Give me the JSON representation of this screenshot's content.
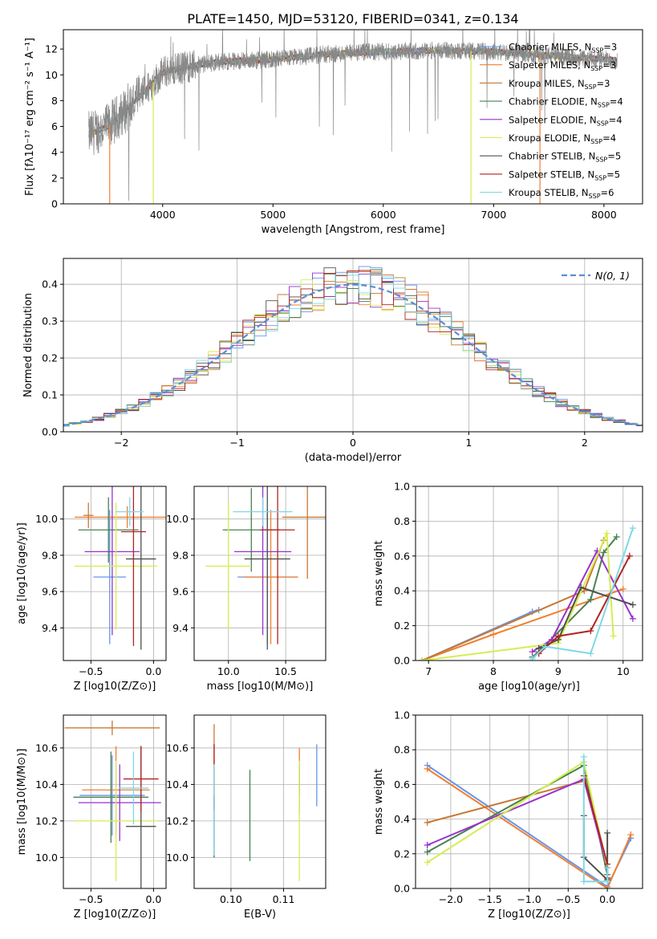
{
  "figure": {
    "title": "PLATE=1450, MJD=53120, FIBERID=0341, z=0.134",
    "series_colors": [
      "#6495ed",
      "#f08030",
      "#c87832",
      "#4a8050",
      "#9932cc",
      "#d4ee50",
      "#505050",
      "#b22222",
      "#7fd8e6"
    ]
  },
  "chart_data": [
    {
      "id": "spectrum",
      "type": "line",
      "xlabel": "wavelength [Angstrom, rest frame]",
      "ylabel": "Flux [fλ10⁻¹⁷ erg cm⁻² s⁻¹ A⁻¹]",
      "xlim": [
        3100,
        8350
      ],
      "ylim": [
        0,
        13.5
      ],
      "xticks": [
        4000,
        5000,
        6000,
        7000,
        8000
      ],
      "yticks": [
        0,
        2,
        4,
        6,
        8,
        10,
        12
      ],
      "grid": false,
      "legend_position": "right",
      "data_range_x": [
        3330,
        8120
      ],
      "continuum": {
        "x": [
          3330,
          3500,
          3700,
          3900,
          4000,
          4200,
          4500,
          5000,
          5500,
          6000,
          6500,
          7000,
          7500,
          8000,
          8120
        ],
        "y": [
          5.4,
          6.0,
          7.5,
          9.3,
          10.2,
          10.6,
          11.0,
          11.2,
          11.6,
          11.8,
          11.9,
          11.8,
          11.5,
          11.2,
          11.1
        ]
      },
      "legend": [
        "Chabrier MILES, N_SSP=3",
        "Salpeter MILES, N_SSP=3",
        "Kroupa MILES, N_SSP=3",
        "Chabrier ELODIE, N_SSP=4",
        "Salpeter ELODIE, N_SSP=4",
        "Kroupa ELODIE, N_SSP=4",
        "Chabrier STELIB, N_SSP=5",
        "Salpeter STELIB, N_SSP=5",
        "Kroupa STELIB, N_SSP=6"
      ]
    },
    {
      "id": "residuals",
      "type": "step-histogram",
      "xlabel": "(data-model)/error",
      "ylabel": "Normed distribution",
      "xlim": [
        -2.5,
        2.5
      ],
      "ylim": [
        0,
        0.47
      ],
      "xticks": [
        -2,
        -1,
        0,
        1,
        2
      ],
      "yticks": [
        0.0,
        0.1,
        0.2,
        0.3,
        0.4
      ],
      "grid": true,
      "legend": "N(0, 1)",
      "legend_position": "top-right",
      "bin_width": 0.1,
      "reference_curve": "gaussian mean 0 sigma 1"
    },
    {
      "id": "z_age",
      "type": "errorbar",
      "xlabel": "Z [log10(Z/Z⊙)]",
      "ylabel": "age  [log10(age/yr)]",
      "xlim": [
        -0.72,
        0.1
      ],
      "ylim": [
        9.22,
        10.18
      ],
      "xticks": [
        -0.5,
        0.0
      ],
      "yticks": [
        9.4,
        9.6,
        9.8,
        10.0
      ],
      "grid": true,
      "points": [
        {
          "x": -0.35,
          "y": 9.68,
          "xerr": 0.13,
          "yerr": 0.37
        },
        {
          "x": -0.21,
          "y": 10.01,
          "xerr": 0.42,
          "yerr": 0.06
        },
        {
          "x": -0.52,
          "y": 10.02,
          "xerr": 0.04,
          "yerr": 0.07
        },
        {
          "x": -0.36,
          "y": 9.94,
          "xerr": 0.24,
          "yerr": 0.18
        },
        {
          "x": -0.33,
          "y": 9.82,
          "xerr": 0.22,
          "yerr": 0.46
        },
        {
          "x": -0.3,
          "y": 9.74,
          "xerr": 0.33,
          "yerr": 0.35
        },
        {
          "x": -0.1,
          "y": 9.78,
          "xerr": 0.12,
          "yerr": 0.5
        },
        {
          "x": -0.16,
          "y": 9.93,
          "xerr": 0.1,
          "yerr": 0.63
        },
        {
          "x": -0.19,
          "y": 10.04,
          "xerr": 0.11,
          "yerr": 0.08
        }
      ]
    },
    {
      "id": "mass_age",
      "type": "errorbar",
      "xlabel": "mass [log10(M/M⊙)]",
      "ylabel": "",
      "xlim": [
        9.7,
        10.85
      ],
      "ylim": [
        9.22,
        10.18
      ],
      "xticks": [
        10.0,
        10.5
      ],
      "yticks": [
        9.4,
        9.6,
        9.8,
        10.0
      ],
      "grid": true,
      "points": [
        {
          "x": 10.34,
          "y": 9.68,
          "xerr": 0.26,
          "yerr": 0.37
        },
        {
          "x": 10.37,
          "y": 9.68,
          "xerr": 0.24,
          "yerr": 0.37
        },
        {
          "x": 10.69,
          "y": 10.01,
          "xerr": 0.22,
          "yerr": 0.34
        },
        {
          "x": 10.2,
          "y": 9.94,
          "xerr": 0.25,
          "yerr": 0.23
        },
        {
          "x": 10.3,
          "y": 9.82,
          "xerr": 0.25,
          "yerr": 0.46
        },
        {
          "x": 10.0,
          "y": 9.74,
          "xerr": 0.2,
          "yerr": 0.35
        },
        {
          "x": 10.34,
          "y": 9.78,
          "xerr": 0.2,
          "yerr": 0.5
        },
        {
          "x": 10.43,
          "y": 9.94,
          "xerr": 0.15,
          "yerr": 0.63
        },
        {
          "x": 10.3,
          "y": 10.04,
          "xerr": 0.26,
          "yerr": 0.08
        }
      ]
    },
    {
      "id": "age_weight",
      "type": "line",
      "xlabel": "age  [log10(age/yr)]",
      "ylabel": "mass weight",
      "xlim": [
        6.8,
        10.3
      ],
      "ylim": [
        0,
        1.0
      ],
      "xticks": [
        7,
        8,
        9,
        10
      ],
      "yticks": [
        0.0,
        0.2,
        0.4,
        0.6,
        0.8,
        1.0
      ],
      "grid": true,
      "series": [
        {
          "x": [
            6.9,
            8.6,
            8.7
          ],
          "y": [
            0.0,
            0.28,
            0.29
          ]
        },
        {
          "x": [
            6.9,
            8.0,
            10.0
          ],
          "y": [
            0.0,
            0.15,
            0.41
          ]
        },
        {
          "x": [
            6.9,
            9.4,
            9.7
          ],
          "y": [
            0.0,
            0.4,
            0.69
          ]
        },
        {
          "x": [
            8.6,
            8.7,
            9.5,
            9.7,
            9.9
          ],
          "y": [
            0.02,
            0.05,
            0.35,
            0.62,
            0.71
          ]
        },
        {
          "x": [
            8.6,
            8.9,
            9.6,
            10.15
          ],
          "y": [
            0.05,
            0.12,
            0.63,
            0.24
          ]
        },
        {
          "x": [
            6.9,
            9.0,
            9.75,
            9.85
          ],
          "y": [
            0.0,
            0.1,
            0.73,
            0.14
          ]
        },
        {
          "x": [
            8.7,
            9.0,
            9.35,
            10.15
          ],
          "y": [
            0.07,
            0.12,
            0.42,
            0.32
          ]
        },
        {
          "x": [
            8.7,
            9.0,
            9.5,
            10.1
          ],
          "y": [
            0.04,
            0.14,
            0.17,
            0.6
          ]
        },
        {
          "x": [
            8.6,
            8.8,
            9.5,
            10.15
          ],
          "y": [
            0.01,
            0.08,
            0.04,
            0.76
          ]
        }
      ]
    },
    {
      "id": "z_mass",
      "type": "errorbar",
      "xlabel": "Z [log10(Z/Z⊙)]",
      "ylabel": "mass [log10(M/M⊙)]",
      "xlim": [
        -0.72,
        0.1
      ],
      "ylim": [
        9.83,
        10.78
      ],
      "xticks": [
        -0.5,
        0.0
      ],
      "yticks": [
        10.0,
        10.2,
        10.4,
        10.6
      ],
      "grid": true,
      "points": [
        {
          "x": -0.33,
          "y": 10.34,
          "xerr": 0.26,
          "yerr": 0.22
        },
        {
          "x": -0.3,
          "y": 10.37,
          "xerr": 0.27,
          "yerr": 0.24
        },
        {
          "x": -0.33,
          "y": 10.71,
          "xerr": 0.38,
          "yerr": 0.04
        },
        {
          "x": -0.34,
          "y": 10.33,
          "xerr": 0.3,
          "yerr": 0.25
        },
        {
          "x": -0.27,
          "y": 10.3,
          "xerr": 0.33,
          "yerr": 0.21
        },
        {
          "x": -0.3,
          "y": 10.2,
          "xerr": 0.33,
          "yerr": 0.33
        },
        {
          "x": -0.1,
          "y": 10.17,
          "xerr": 0.12,
          "yerr": 0.44
        },
        {
          "x": -0.1,
          "y": 10.43,
          "xerr": 0.14,
          "yerr": 0.18
        },
        {
          "x": -0.16,
          "y": 10.38,
          "xerr": 0.12,
          "yerr": 0.2
        }
      ]
    },
    {
      "id": "ebv_mass",
      "type": "errorbar",
      "xlabel": "E(B-V)",
      "ylabel": "",
      "xlim": [
        0.093,
        0.118
      ],
      "ylim": [
        9.83,
        10.78
      ],
      "xticks": [
        0.1,
        0.11
      ],
      "yticks": [
        10.0,
        10.2,
        10.4,
        10.6
      ],
      "grid": true,
      "points": [
        {
          "x": 0.1163,
          "y": 10.45,
          "xerr": 0.0,
          "yerr": 0.17
        },
        {
          "x": 0.113,
          "y": 10.42,
          "xerr": 0.0,
          "yerr": 0.18
        },
        {
          "x": 0.0968,
          "y": 10.62,
          "xerr": 0.0,
          "yerr": 0.11
        },
        {
          "x": 0.1036,
          "y": 10.23,
          "xerr": 0.0,
          "yerr": 0.25
        },
        {
          "x": 0.113,
          "y": 10.42,
          "xerr": 0.0,
          "yerr": 0.08
        },
        {
          "x": 0.113,
          "y": 10.2,
          "xerr": 0.0,
          "yerr": 0.33
        },
        {
          "x": 0.0968,
          "y": 10.17,
          "xerr": 0.0,
          "yerr": 0.17
        },
        {
          "x": 0.0968,
          "y": 10.44,
          "xerr": 0.0,
          "yerr": 0.18
        },
        {
          "x": 0.0968,
          "y": 10.26,
          "xerr": 0.0,
          "yerr": 0.25
        }
      ]
    },
    {
      "id": "z_weight",
      "type": "line",
      "xlabel": "Z [log10(Z/Z⊙)]",
      "ylabel": "mass weight",
      "xlim": [
        -2.45,
        0.45
      ],
      "ylim": [
        0,
        1.0
      ],
      "xticks": [
        -2.0,
        -1.5,
        -1.0,
        -0.5,
        0.0
      ],
      "yticks": [
        0.0,
        0.2,
        0.4,
        0.6,
        0.8,
        1.0
      ],
      "grid": true,
      "series": [
        {
          "x": [
            -2.3,
            0.0,
            0.3
          ],
          "y": [
            0.71,
            0.01,
            0.29
          ]
        },
        {
          "x": [
            -2.3,
            0.0,
            0.3
          ],
          "y": [
            0.69,
            0.0,
            0.31
          ]
        },
        {
          "x": [
            -2.3,
            -0.3
          ],
          "y": [
            0.38,
            0.62
          ]
        },
        {
          "x": [
            -2.3,
            -0.3,
            0.0
          ],
          "y": [
            0.21,
            0.71,
            0.08
          ]
        },
        {
          "x": [
            -2.3,
            -0.3,
            0.0
          ],
          "y": [
            0.25,
            0.63,
            0.12
          ]
        },
        {
          "x": [
            -2.3,
            -0.3,
            0.0
          ],
          "y": [
            0.15,
            0.73,
            0.12
          ]
        },
        {
          "x": [
            -0.3,
            -0.3,
            0.0,
            0.0
          ],
          "y": [
            0.42,
            0.18,
            0.05,
            0.32
          ]
        },
        {
          "x": [
            -0.3,
            0.0,
            0.0
          ],
          "y": [
            0.65,
            0.14,
            0.06
          ]
        },
        {
          "x": [
            -0.3,
            -0.3,
            0.0,
            0.0
          ],
          "y": [
            0.76,
            0.04,
            0.04,
            0.12
          ]
        }
      ]
    }
  ]
}
